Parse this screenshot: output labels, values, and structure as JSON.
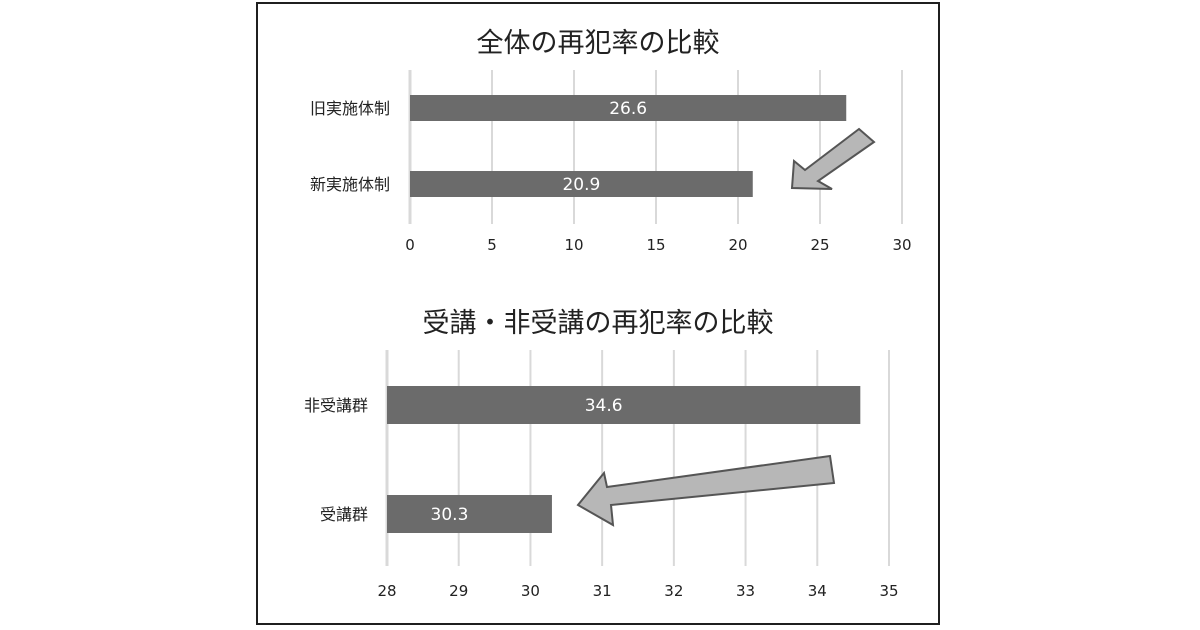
{
  "colors": {
    "bar": "#6b6b6b",
    "grid": "#d9d9d9",
    "arrow_fill": "#b7b7b7",
    "arrow_stroke": "#555555",
    "label_text": "#ffffff"
  },
  "chart_data": [
    {
      "type": "bar",
      "orientation": "horizontal",
      "title": "全体の再犯率の比較",
      "categories": [
        "旧実施体制",
        "新実施体制"
      ],
      "values": [
        26.6,
        20.9
      ],
      "data_labels": [
        "26.6",
        "20.9"
      ],
      "xlim": [
        0,
        30
      ],
      "ticks": [
        0,
        5,
        10,
        15,
        20,
        25,
        30
      ],
      "tick_labels": [
        "0",
        "5",
        "10",
        "15",
        "20",
        "25",
        "30"
      ],
      "grid": true,
      "annotation": "arrow pointing down-left toward 新実施体制 bar"
    },
    {
      "type": "bar",
      "orientation": "horizontal",
      "title": "受講・非受講の再犯率の比較",
      "categories": [
        "非受講群",
        "受講群"
      ],
      "values": [
        34.6,
        30.3
      ],
      "data_labels": [
        "34.6",
        "30.3"
      ],
      "xlim": [
        28,
        35
      ],
      "ticks": [
        28,
        29,
        30,
        31,
        32,
        33,
        34,
        35
      ],
      "tick_labels": [
        "28",
        "29",
        "30",
        "31",
        "32",
        "33",
        "34",
        "35"
      ],
      "grid": true,
      "annotation": "arrow pointing left toward 受講群 bar"
    }
  ]
}
